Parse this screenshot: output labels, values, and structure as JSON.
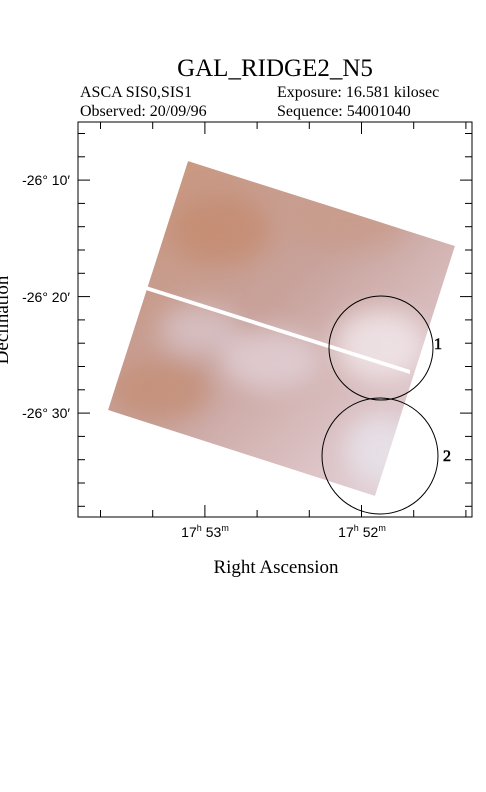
{
  "header": {
    "title": "GAL_RIDGE2_N5",
    "instrument": "ASCA SIS0,SIS1",
    "exposure": "Exposure: 16.581 kilosec",
    "observed": "Observed: 20/09/96",
    "sequence": "Sequence: 54001040"
  },
  "axes": {
    "x_label": "Right Ascension",
    "y_label": "Declination",
    "dec_ticks": [
      "-26° 10′",
      "-26° 20′",
      "-26° 30′"
    ],
    "ra_ticks": [
      {
        "h": "17",
        "hu": "h",
        "m": "53",
        "mu": "m"
      },
      {
        "h": "17",
        "hu": "h",
        "m": "52",
        "mu": "m"
      }
    ]
  },
  "regions": [
    {
      "label": "1"
    },
    {
      "label": "2"
    }
  ]
}
